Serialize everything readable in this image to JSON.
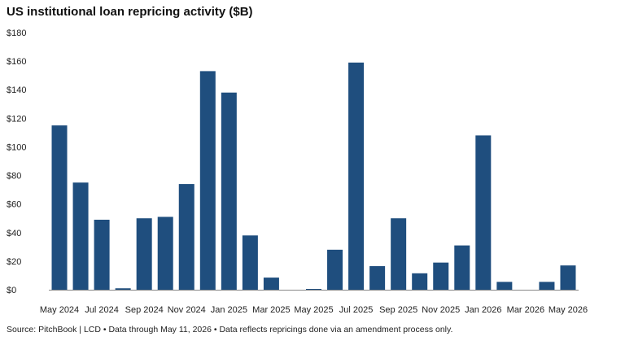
{
  "title": "US institutional loan repricing activity ($B)",
  "source": "Source: PitchBook | LCD • Data through May 11, 2026 • Data reflects repricings done via an amendment process only.",
  "colors": {
    "bar": "#1f4e7e",
    "axis": "#888888",
    "text": "#222222"
  },
  "chart_data": {
    "type": "bar",
    "title": "US institutional loan repricing activity ($B)",
    "xlabel": "",
    "ylabel": "",
    "ylim": [
      0,
      180
    ],
    "y_ticks": [
      0,
      20,
      40,
      60,
      80,
      100,
      120,
      140,
      160,
      180
    ],
    "y_tick_labels": [
      "$0",
      "$20",
      "$40",
      "$60",
      "$80",
      "$100",
      "$120",
      "$140",
      "$160",
      "$180"
    ],
    "grid": false,
    "categories": [
      "May 2024",
      "Jun 2024",
      "Jul 2024",
      "Aug 2024",
      "Sep 2024",
      "Oct 2024",
      "Nov 2024",
      "Dec 2024",
      "Jan 2025",
      "Feb 2025",
      "Mar 2025",
      "Apr 2025",
      "May 2025",
      "Jun 2025",
      "Jul 2025",
      "Aug 2025",
      "Sep 2025",
      "Oct 2025",
      "Nov 2025",
      "Dec 2025",
      "Jan 2026",
      "Feb 2026",
      "Mar 2026",
      "Apr 2026",
      "May 2026"
    ],
    "values": [
      115,
      75,
      49,
      1,
      50,
      51,
      74,
      153,
      138,
      38,
      8.5,
      0,
      0.5,
      28,
      159,
      16.5,
      50,
      11.5,
      19,
      31,
      108,
      5.5,
      0,
      5.5,
      17
    ],
    "x_tick_labels": [
      "May 2024",
      "",
      "Jul 2024",
      "",
      "Sep 2024",
      "",
      "Nov 2024",
      "",
      "Jan 2025",
      "",
      "Mar 2025",
      "",
      "May 2025",
      "",
      "Jul 2025",
      "",
      "Sep 2025",
      "",
      "Nov 2025",
      "",
      "Jan 2026",
      "",
      "Mar 2026",
      "",
      "May 2026"
    ]
  }
}
